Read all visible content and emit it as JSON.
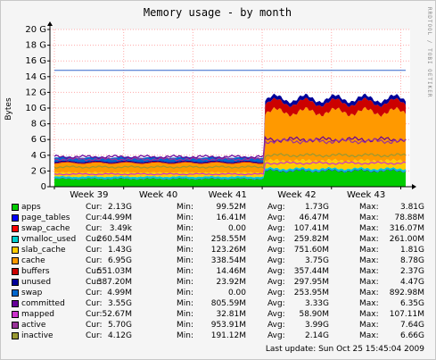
{
  "chart_data": {
    "type": "area",
    "title": "Memory usage - by month",
    "ylabel": "Bytes",
    "watermark": "RRDTOOL / TOBI OETIKER",
    "x_ticks": [
      "Week 39",
      "Week 40",
      "Week 41",
      "Week 42",
      "Week 43"
    ],
    "y_ticks": [
      "0",
      "2 G",
      "4 G",
      "6 G",
      "8 G",
      "10 G",
      "12 G",
      "14 G",
      "16 G",
      "18 G",
      "20 G"
    ],
    "ylim": [
      0,
      20
    ],
    "y_unit": "G",
    "total_memory_line_gb": 14.8,
    "grid": true,
    "change_point_fraction": 0.6,
    "series": [
      {
        "name": "apps",
        "color": "#00cc00",
        "before": 1.0,
        "after": 2.0
      },
      {
        "name": "page_tables",
        "color": "#0000ff",
        "before": 0.04,
        "after": 0.07
      },
      {
        "name": "swap_cache",
        "color": "#ff0000",
        "before": 0.0,
        "after": 0.0
      },
      {
        "name": "vmalloc_used",
        "color": "#00cccc",
        "before": 0.25,
        "after": 0.25
      },
      {
        "name": "slab_cache",
        "color": "#ffcc00",
        "before": 0.5,
        "after": 1.0
      },
      {
        "name": "cache",
        "color": "#ff9900",
        "before": 1.2,
        "after": 6.2
      },
      {
        "name": "buffers",
        "color": "#cc0000",
        "before": 0.1,
        "after": 1.2
      },
      {
        "name": "unused",
        "color": "#000099",
        "before": 0.15,
        "after": 0.5
      },
      {
        "name": "swap",
        "color": "#0066cc",
        "before": 0.5,
        "after": 0.0
      },
      {
        "name": "committed",
        "color": "#660099",
        "before": 0,
        "after": 0,
        "line": 3.8,
        "line_after": 6.0
      },
      {
        "name": "mapped",
        "color": "#cc33cc",
        "before": 0,
        "after": 0,
        "line": 1.6,
        "line_after": 3.0
      },
      {
        "name": "active",
        "color": "#993399",
        "before": 0,
        "after": 0,
        "line": 3.5,
        "line_after": 5.8
      },
      {
        "name": "inactive",
        "color": "#999933",
        "before": 0,
        "after": 0,
        "line": 2.5,
        "line_after": 4.0
      }
    ]
  },
  "legend": {
    "labels": {
      "cur": "Cur:",
      "min": "Min:",
      "avg": "Avg:",
      "max": "Max:"
    },
    "rows": [
      {
        "name": "apps",
        "color": "#00cc00",
        "cur": "2.13G",
        "min": "99.52M",
        "avg": "1.73G",
        "max": "3.81G"
      },
      {
        "name": "page_tables",
        "color": "#0000ff",
        "cur": "44.99M",
        "min": "16.41M",
        "avg": "46.47M",
        "max": "78.88M"
      },
      {
        "name": "swap_cache",
        "color": "#ff0000",
        "cur": "3.49k",
        "min": "0.00",
        "avg": "107.41M",
        "max": "316.07M"
      },
      {
        "name": "vmalloc_used",
        "color": "#00cccc",
        "cur": "260.54M",
        "min": "258.55M",
        "avg": "259.82M",
        "max": "261.00M"
      },
      {
        "name": "slab_cache",
        "color": "#ffcc00",
        "cur": "1.43G",
        "min": "123.26M",
        "avg": "751.60M",
        "max": "1.81G"
      },
      {
        "name": "cache",
        "color": "#ff9900",
        "cur": "6.95G",
        "min": "338.54M",
        "avg": "3.75G",
        "max": "8.78G"
      },
      {
        "name": "buffers",
        "color": "#cc0000",
        "cur": "551.03M",
        "min": "14.46M",
        "avg": "357.44M",
        "max": "2.37G"
      },
      {
        "name": "unused",
        "color": "#000099",
        "cur": "387.20M",
        "min": "23.92M",
        "avg": "297.95M",
        "max": "4.47G"
      },
      {
        "name": "swap",
        "color": "#0066cc",
        "cur": "4.99M",
        "min": "0.00",
        "avg": "253.95M",
        "max": "892.98M"
      },
      {
        "name": "committed",
        "color": "#660099",
        "cur": "3.55G",
        "min": "805.59M",
        "avg": "3.33G",
        "max": "6.35G"
      },
      {
        "name": "mapped",
        "color": "#cc33cc",
        "cur": "52.67M",
        "min": "32.81M",
        "avg": "58.90M",
        "max": "107.11M"
      },
      {
        "name": "active",
        "color": "#993399",
        "cur": "5.70G",
        "min": "953.91M",
        "avg": "3.99G",
        "max": "7.64G"
      },
      {
        "name": "inactive",
        "color": "#999933",
        "cur": "4.12G",
        "min": "191.12M",
        "avg": "2.14G",
        "max": "6.66G"
      }
    ]
  },
  "last_update": "Last update: Sun Oct 25 15:45:04 2009"
}
